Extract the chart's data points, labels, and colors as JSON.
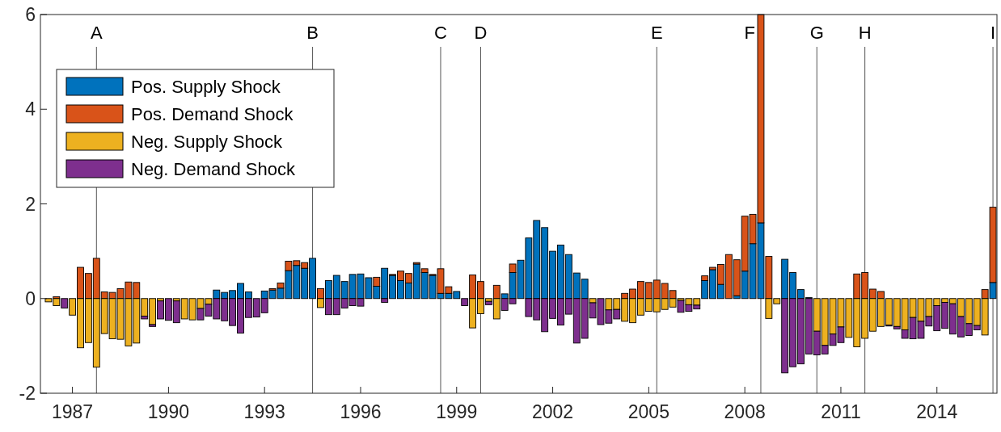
{
  "chart_data": {
    "type": "bar",
    "stacked": true,
    "x": [
      1986.25,
      1986.5,
      1986.75,
      1987,
      1987.25,
      1987.5,
      1987.75,
      1988,
      1988.25,
      1988.5,
      1988.75,
      1989,
      1989.25,
      1989.5,
      1989.75,
      1990,
      1990.25,
      1990.5,
      1990.75,
      1991,
      1991.25,
      1991.5,
      1991.75,
      1992,
      1992.25,
      1992.5,
      1992.75,
      1993,
      1993.25,
      1993.5,
      1993.75,
      1994,
      1994.25,
      1994.5,
      1994.75,
      1995,
      1995.25,
      1995.5,
      1995.75,
      1996,
      1996.25,
      1996.5,
      1996.75,
      1997,
      1997.25,
      1997.5,
      1997.75,
      1998,
      1998.25,
      1998.5,
      1998.75,
      1999,
      1999.25,
      1999.5,
      1999.75,
      2000,
      2000.25,
      2000.5,
      2000.75,
      2001,
      2001.25,
      2001.5,
      2001.75,
      2002,
      2002.25,
      2002.5,
      2002.75,
      2003,
      2003.25,
      2003.5,
      2003.75,
      2004,
      2004.25,
      2004.5,
      2004.75,
      2005,
      2005.25,
      2005.5,
      2005.75,
      2006,
      2006.25,
      2006.5,
      2006.75,
      2007,
      2007.25,
      2007.5,
      2007.75,
      2008,
      2008.25,
      2008.5,
      2008.75,
      2009,
      2009.25,
      2009.5,
      2009.75,
      2010,
      2010.25,
      2010.5,
      2010.75,
      2011,
      2011.25,
      2011.5,
      2011.75,
      2012,
      2012.25,
      2012.5,
      2012.75,
      2013,
      2013.25,
      2013.5,
      2013.75,
      2014,
      2014.25,
      2014.5,
      2014.75,
      2015,
      2015.25,
      2015.5,
      2015.75
    ],
    "series": [
      {
        "name": "Pos. Supply Shock",
        "color": "#0072bd",
        "values": [
          0,
          0,
          0,
          0,
          0,
          0,
          0,
          0,
          0,
          0,
          0,
          0,
          0,
          0,
          0,
          0,
          0,
          0,
          0,
          0,
          0,
          0.18,
          0.13,
          0.17,
          0.32,
          0.14,
          0,
          0.16,
          0.18,
          0.22,
          0.59,
          0.7,
          0.64,
          0.85,
          0,
          0.38,
          0.49,
          0.36,
          0.51,
          0.52,
          0.44,
          0.26,
          0.64,
          0.49,
          0.38,
          0.33,
          0.73,
          0.55,
          0.49,
          0.11,
          0.11,
          0.15,
          0,
          0,
          0,
          0,
          0,
          0.1,
          0.55,
          0.81,
          1.28,
          1.65,
          1.5,
          1,
          1.13,
          0.93,
          0.54,
          0.41,
          0,
          0,
          0,
          0,
          0,
          0,
          0,
          0,
          0,
          0,
          0,
          0,
          0,
          0,
          0.38,
          0.61,
          0.3,
          0,
          0.06,
          0.58,
          1.16,
          1.6,
          0,
          0,
          0.83,
          0.55,
          0.19,
          0.02,
          0,
          0,
          0,
          0,
          0,
          0,
          0,
          0,
          0,
          0,
          0,
          0,
          0,
          0,
          0,
          0,
          0,
          0,
          0,
          0,
          0,
          0,
          0.34
        ]
      },
      {
        "name": "Pos. Demand Shock",
        "color": "#d95319",
        "values": [
          0,
          0.04,
          0,
          0,
          0.66,
          0.53,
          0.85,
          0.14,
          0.13,
          0.21,
          0.35,
          0.34,
          0,
          0,
          0,
          0,
          0,
          0,
          0,
          0,
          0,
          0,
          0,
          0,
          0,
          0,
          0,
          0,
          0.03,
          0.11,
          0.2,
          0.1,
          0.12,
          0,
          0.21,
          0,
          0,
          0,
          0,
          0,
          0,
          0.19,
          0,
          0.02,
          0.2,
          0.2,
          0.03,
          0.08,
          0.02,
          0.52,
          0.14,
          0,
          0,
          0.5,
          0.36,
          0,
          0.28,
          0,
          0.18,
          0,
          0,
          0,
          0,
          0,
          0,
          0,
          0,
          0,
          0,
          0,
          0,
          0,
          0.11,
          0.2,
          0.36,
          0.34,
          0.39,
          0.32,
          0.17,
          0,
          0,
          0,
          0.1,
          0.05,
          0.42,
          0.93,
          0.76,
          1.16,
          0.62,
          4.4,
          0.89,
          0,
          0,
          0,
          0,
          0,
          0,
          0,
          0,
          0,
          0,
          0.52,
          0.55,
          0.2,
          0.15,
          0,
          0,
          0,
          0,
          0,
          0,
          0,
          0,
          0,
          0,
          0,
          0,
          0.19,
          1.59
        ]
      },
      {
        "name": "Neg. Supply Shock",
        "color": "#edb120",
        "values": [
          -0.07,
          -0.15,
          0,
          -0.35,
          -1.04,
          -0.93,
          -1.45,
          -0.74,
          -0.85,
          -0.86,
          -1,
          -0.94,
          -0.37,
          -0.55,
          -0.05,
          0,
          -0.05,
          -0.43,
          -0.45,
          -0.21,
          -0.12,
          0,
          0,
          0,
          0,
          0,
          0,
          0,
          0,
          0,
          0,
          0,
          0,
          0,
          -0.19,
          0,
          0,
          0,
          0,
          0,
          0,
          0,
          0,
          0,
          0,
          0,
          0,
          0,
          0,
          0,
          0,
          0,
          0,
          -0.62,
          -0.32,
          -0.06,
          -0.43,
          0,
          0,
          0,
          0,
          0,
          0,
          0,
          0,
          0,
          0,
          0,
          -0.09,
          0,
          -0.24,
          -0.23,
          -0.48,
          -0.51,
          -0.35,
          -0.27,
          -0.28,
          -0.23,
          -0.18,
          -0.04,
          -0.13,
          -0.14,
          0,
          0,
          0,
          0,
          0,
          0,
          0,
          0,
          -0.42,
          -0.11,
          0,
          0,
          0,
          0,
          -0.69,
          -0.99,
          -0.75,
          -0.6,
          -0.82,
          -1.02,
          -0.84,
          -0.69,
          -0.59,
          -0.56,
          -0.59,
          -0.66,
          -0.4,
          -0.48,
          -0.38,
          -0.15,
          -0.08,
          -0.11,
          -0.38,
          -0.53,
          -0.57,
          -0.77,
          0
        ]
      },
      {
        "name": "Neg. Demand Shock",
        "color": "#7e2f8e",
        "values": [
          0,
          0,
          -0.2,
          0,
          0,
          0,
          0,
          0,
          0,
          0,
          0,
          0,
          -0.06,
          -0.04,
          -0.38,
          -0.46,
          -0.46,
          0,
          0,
          -0.24,
          -0.25,
          -0.43,
          -0.47,
          -0.57,
          -0.73,
          -0.4,
          -0.39,
          -0.3,
          0,
          0,
          0,
          0,
          0,
          0,
          0,
          -0.34,
          -0.34,
          -0.2,
          -0.15,
          -0.16,
          0,
          0,
          -0.08,
          0,
          0,
          0,
          0,
          0,
          0,
          0,
          0,
          0,
          -0.15,
          0,
          0,
          -0.07,
          0,
          -0.25,
          -0.11,
          0,
          -0.38,
          -0.45,
          -0.7,
          -0.42,
          -0.56,
          -0.33,
          -0.94,
          -0.84,
          -0.32,
          -0.55,
          -0.28,
          -0.2,
          0,
          0,
          0,
          0,
          0,
          0,
          0,
          -0.25,
          -0.14,
          -0.08,
          0,
          0,
          0,
          0,
          0,
          0,
          0,
          0,
          0,
          0,
          -1.57,
          -1.44,
          -1.38,
          -1.17,
          -0.5,
          -0.18,
          -0.24,
          -0.33,
          0,
          0,
          0,
          0,
          0,
          -0.02,
          -0.05,
          -0.18,
          -0.45,
          -0.36,
          -0.2,
          -0.53,
          -0.55,
          -0.64,
          -0.43,
          -0.25,
          -0.09,
          0,
          0
        ]
      }
    ],
    "xlim": [
      1986,
      2015.875
    ],
    "xticks": [
      1987,
      1990,
      1993,
      1996,
      1999,
      2002,
      2005,
      2008,
      2011,
      2014
    ],
    "ylim": [
      -2,
      6
    ],
    "yticks": [
      -2,
      0,
      2,
      4,
      6
    ],
    "ref_lines": [
      {
        "axis": "x",
        "value": 1987.75,
        "label": "A"
      },
      {
        "axis": "x",
        "value": 1994.5,
        "label": "B"
      },
      {
        "axis": "x",
        "value": 1998.5,
        "label": "C"
      },
      {
        "axis": "x",
        "value": 1999.75,
        "label": "D"
      },
      {
        "axis": "x",
        "value": 2005.25,
        "label": "E"
      },
      {
        "axis": "x",
        "value": 2008.5,
        "label": "F"
      },
      {
        "axis": "x",
        "value": 2010.25,
        "label": "G"
      },
      {
        "axis": "x",
        "value": 2011.75,
        "label": "H"
      },
      {
        "axis": "x",
        "value": 2015.75,
        "label": "I"
      }
    ],
    "legend": "left",
    "grid": false
  }
}
